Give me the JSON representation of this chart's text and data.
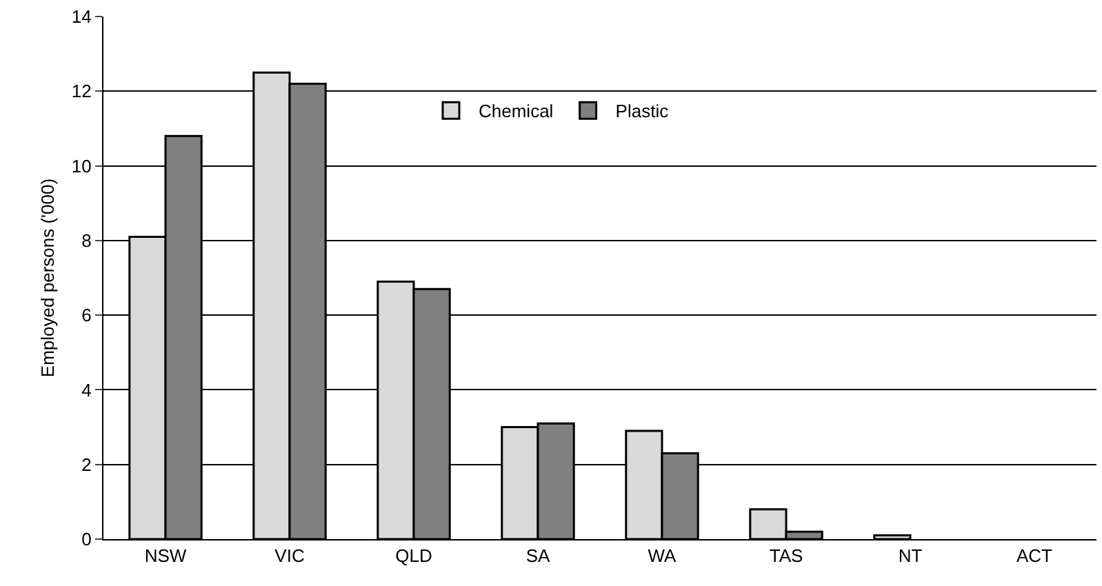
{
  "chart_data": {
    "type": "bar",
    "ylabel": "Employed persons ('000)",
    "categories": [
      "NSW",
      "VIC",
      "QLD",
      "SA",
      "WA",
      "TAS",
      "NT",
      "ACT"
    ],
    "series": [
      {
        "name": "Chemical",
        "color": "#d9d9d9",
        "values": [
          8.1,
          12.5,
          6.9,
          3.0,
          2.9,
          0.8,
          0.1,
          null
        ]
      },
      {
        "name": "Plastic",
        "color": "#808080",
        "values": [
          10.8,
          12.2,
          6.7,
          3.1,
          2.3,
          0.2,
          null,
          null
        ]
      }
    ],
    "ylim": [
      0,
      14
    ],
    "yticks": [
      0,
      2,
      4,
      6,
      8,
      10,
      12,
      14
    ],
    "grid": "y",
    "legend": "top"
  }
}
